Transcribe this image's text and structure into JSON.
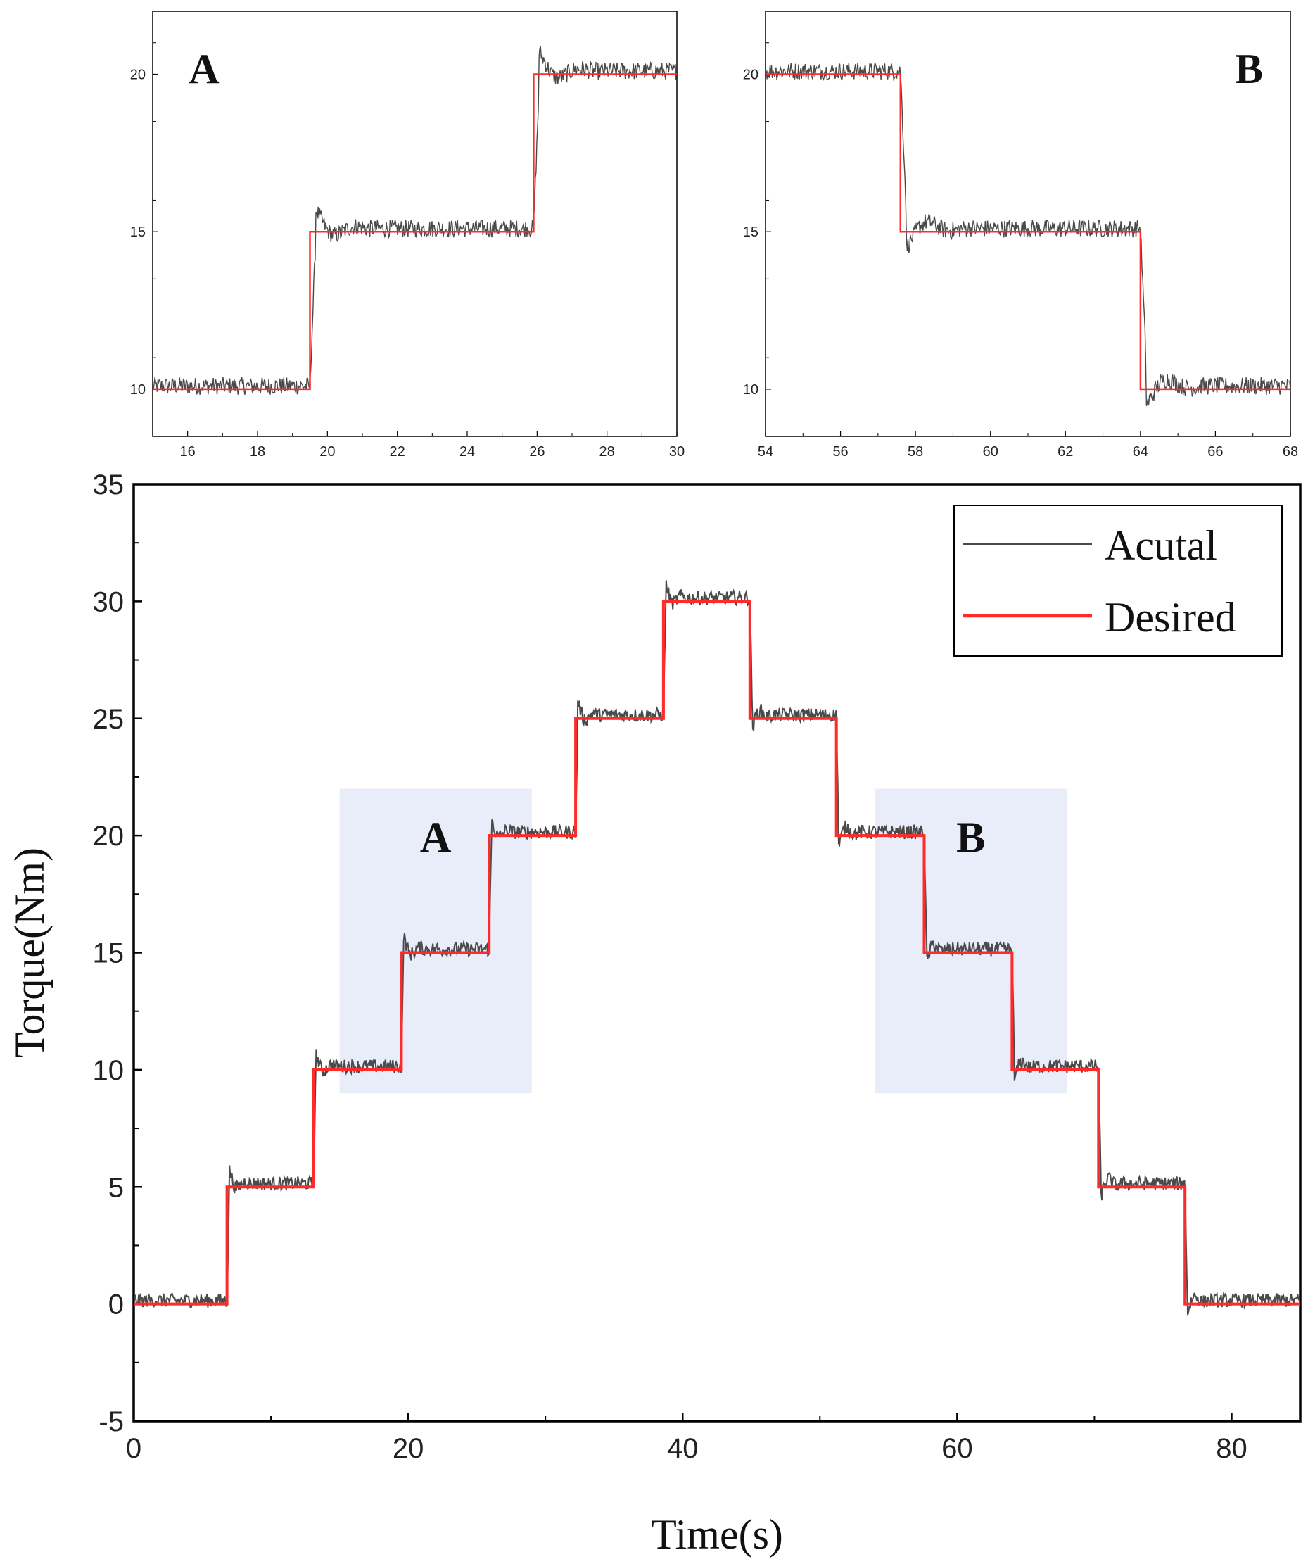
{
  "chart_data": [
    {
      "id": "inset-a",
      "type": "line",
      "panel_label": "A",
      "xlim": [
        15,
        30
      ],
      "ylim": [
        8.5,
        22
      ],
      "xticks": [
        16,
        18,
        20,
        22,
        24,
        26,
        28,
        30
      ],
      "yticks": [
        10,
        15,
        20
      ],
      "steps": [
        [
          15,
          10
        ],
        [
          19.5,
          15
        ],
        [
          25.9,
          20
        ]
      ],
      "series": [
        {
          "name": "Actual",
          "color": "#4a4a4a",
          "noise": 0.28,
          "overshoot": [
            {
              "t": 19.5,
              "amp": 1.0
            },
            {
              "t": 25.9,
              "amp": 0.6
            }
          ]
        },
        {
          "name": "Desired",
          "color": "#ff2a2a"
        }
      ]
    },
    {
      "id": "inset-b",
      "type": "line",
      "panel_label": "B",
      "xlim": [
        54,
        68
      ],
      "ylim": [
        8.5,
        22
      ],
      "xticks": [
        54,
        56,
        58,
        60,
        62,
        64,
        66,
        68
      ],
      "yticks": [
        10,
        15,
        20
      ],
      "steps": [
        [
          54,
          20
        ],
        [
          57.6,
          15
        ],
        [
          64,
          10
        ]
      ],
      "series": [
        {
          "name": "Actual",
          "color": "#4a4a4a",
          "noise": 0.28,
          "overshoot": [
            {
              "t": 57.6,
              "amp": 0.8
            },
            {
              "t": 64,
              "amp": 0.9
            }
          ]
        },
        {
          "name": "Desired",
          "color": "#ff2a2a"
        }
      ]
    },
    {
      "id": "main",
      "type": "line",
      "xlabel": "Time(s)",
      "ylabel": "Torque(Nm)",
      "xlim": [
        0,
        85
      ],
      "ylim": [
        -5,
        35
      ],
      "xticks": [
        0,
        20,
        40,
        60,
        80
      ],
      "yticks": [
        -5,
        0,
        5,
        10,
        15,
        20,
        25,
        30,
        35
      ],
      "xminor": [
        10,
        30,
        50,
        70
      ],
      "steps": [
        [
          0,
          0
        ],
        [
          6.8,
          5
        ],
        [
          13.1,
          10
        ],
        [
          19.5,
          15
        ],
        [
          25.9,
          20
        ],
        [
          32.2,
          25
        ],
        [
          38.6,
          30
        ],
        [
          44.9,
          25
        ],
        [
          51.2,
          20
        ],
        [
          57.6,
          15
        ],
        [
          64,
          10
        ],
        [
          70.3,
          5
        ],
        [
          76.6,
          0
        ]
      ],
      "series": [
        {
          "name": "Acutal",
          "color": "#4a4a4a",
          "noise": 0.3
        },
        {
          "name": "Desired",
          "color": "#ff2a2a"
        }
      ],
      "legend": {
        "position": "top-right",
        "entries": [
          "Acutal",
          "Desired"
        ]
      },
      "highlight_regions": [
        {
          "label": "A",
          "x": [
            15,
            29
          ],
          "y": [
            9,
            22
          ]
        },
        {
          "label": "B",
          "x": [
            54,
            68
          ],
          "y": [
            9,
            22
          ]
        }
      ]
    }
  ]
}
